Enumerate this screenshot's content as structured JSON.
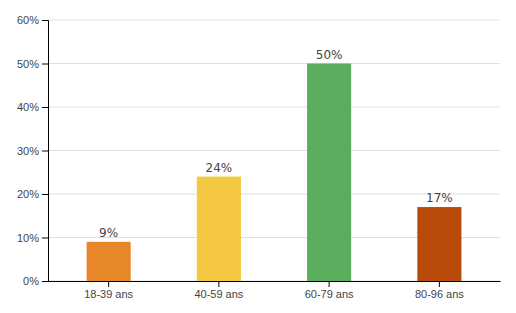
{
  "chart_data": {
    "type": "bar",
    "categories": [
      "18-39 ans",
      "40-59 ans",
      "60-79 ans",
      "80-96 ans"
    ],
    "values": [
      9,
      24,
      50,
      17
    ],
    "value_labels": [
      "9%",
      "24%",
      "50%",
      "17%"
    ],
    "colors": [
      "#E8872A",
      "#F5C842",
      "#5BAD5E",
      "#B84B0A"
    ],
    "ylim": [
      0,
      60
    ],
    "yticks": [
      {
        "value": 0,
        "label": "0%"
      },
      {
        "value": 10,
        "label": "10%"
      },
      {
        "value": 20,
        "label": "20%"
      },
      {
        "value": 30,
        "label": "30%"
      },
      {
        "value": 40,
        "label": "40%"
      },
      {
        "value": 50,
        "label": "50%"
      },
      {
        "value": 60,
        "label": "60%"
      }
    ],
    "grid": true,
    "data_labels": true
  }
}
